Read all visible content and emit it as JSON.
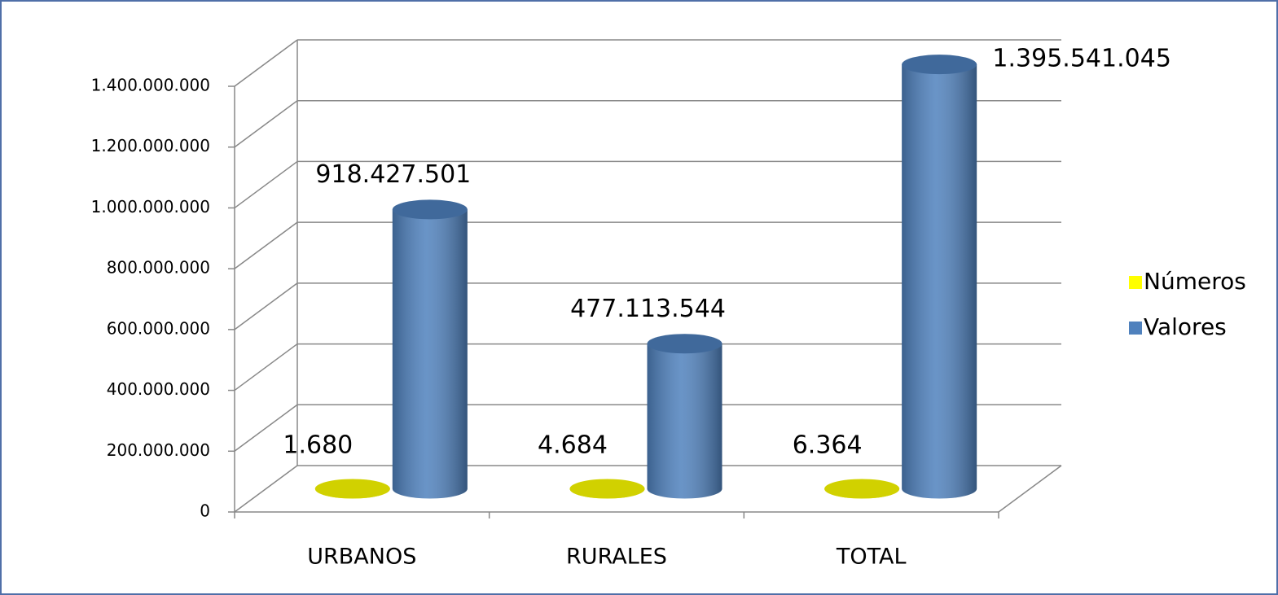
{
  "chart_data": {
    "type": "bar3d",
    "categories": [
      "URBANOS",
      "RURALES",
      "TOTAL"
    ],
    "series": [
      {
        "name": "Números",
        "color": "#ffff00",
        "values": [
          1680,
          4684,
          6364
        ],
        "value_labels": [
          "1.680",
          "4.684",
          "6.364"
        ]
      },
      {
        "name": "Valores",
        "color": "#4f81bd",
        "values": [
          918427501,
          477113544,
          1395541045
        ],
        "value_labels": [
          "918.427.501",
          "477.113.544",
          "1.395.541.045"
        ]
      }
    ],
    "ylim": [
      0,
      1400000000
    ],
    "yticks": [
      0,
      {
        "value": 200000000,
        "label": "200.000.000"
      },
      {
        "value": 400000000,
        "label": "400.000.000"
      },
      {
        "value": 600000000,
        "label": "600.000.000"
      },
      {
        "value": 800000000,
        "label": "800.000.000"
      },
      {
        "value": 1000000000,
        "label": "1.000.000.000"
      },
      {
        "value": 1200000000,
        "label": "1.200.000.000"
      },
      {
        "value": 1400000000,
        "label": "1.400.000.000"
      }
    ],
    "grid": true,
    "legend": "right"
  }
}
